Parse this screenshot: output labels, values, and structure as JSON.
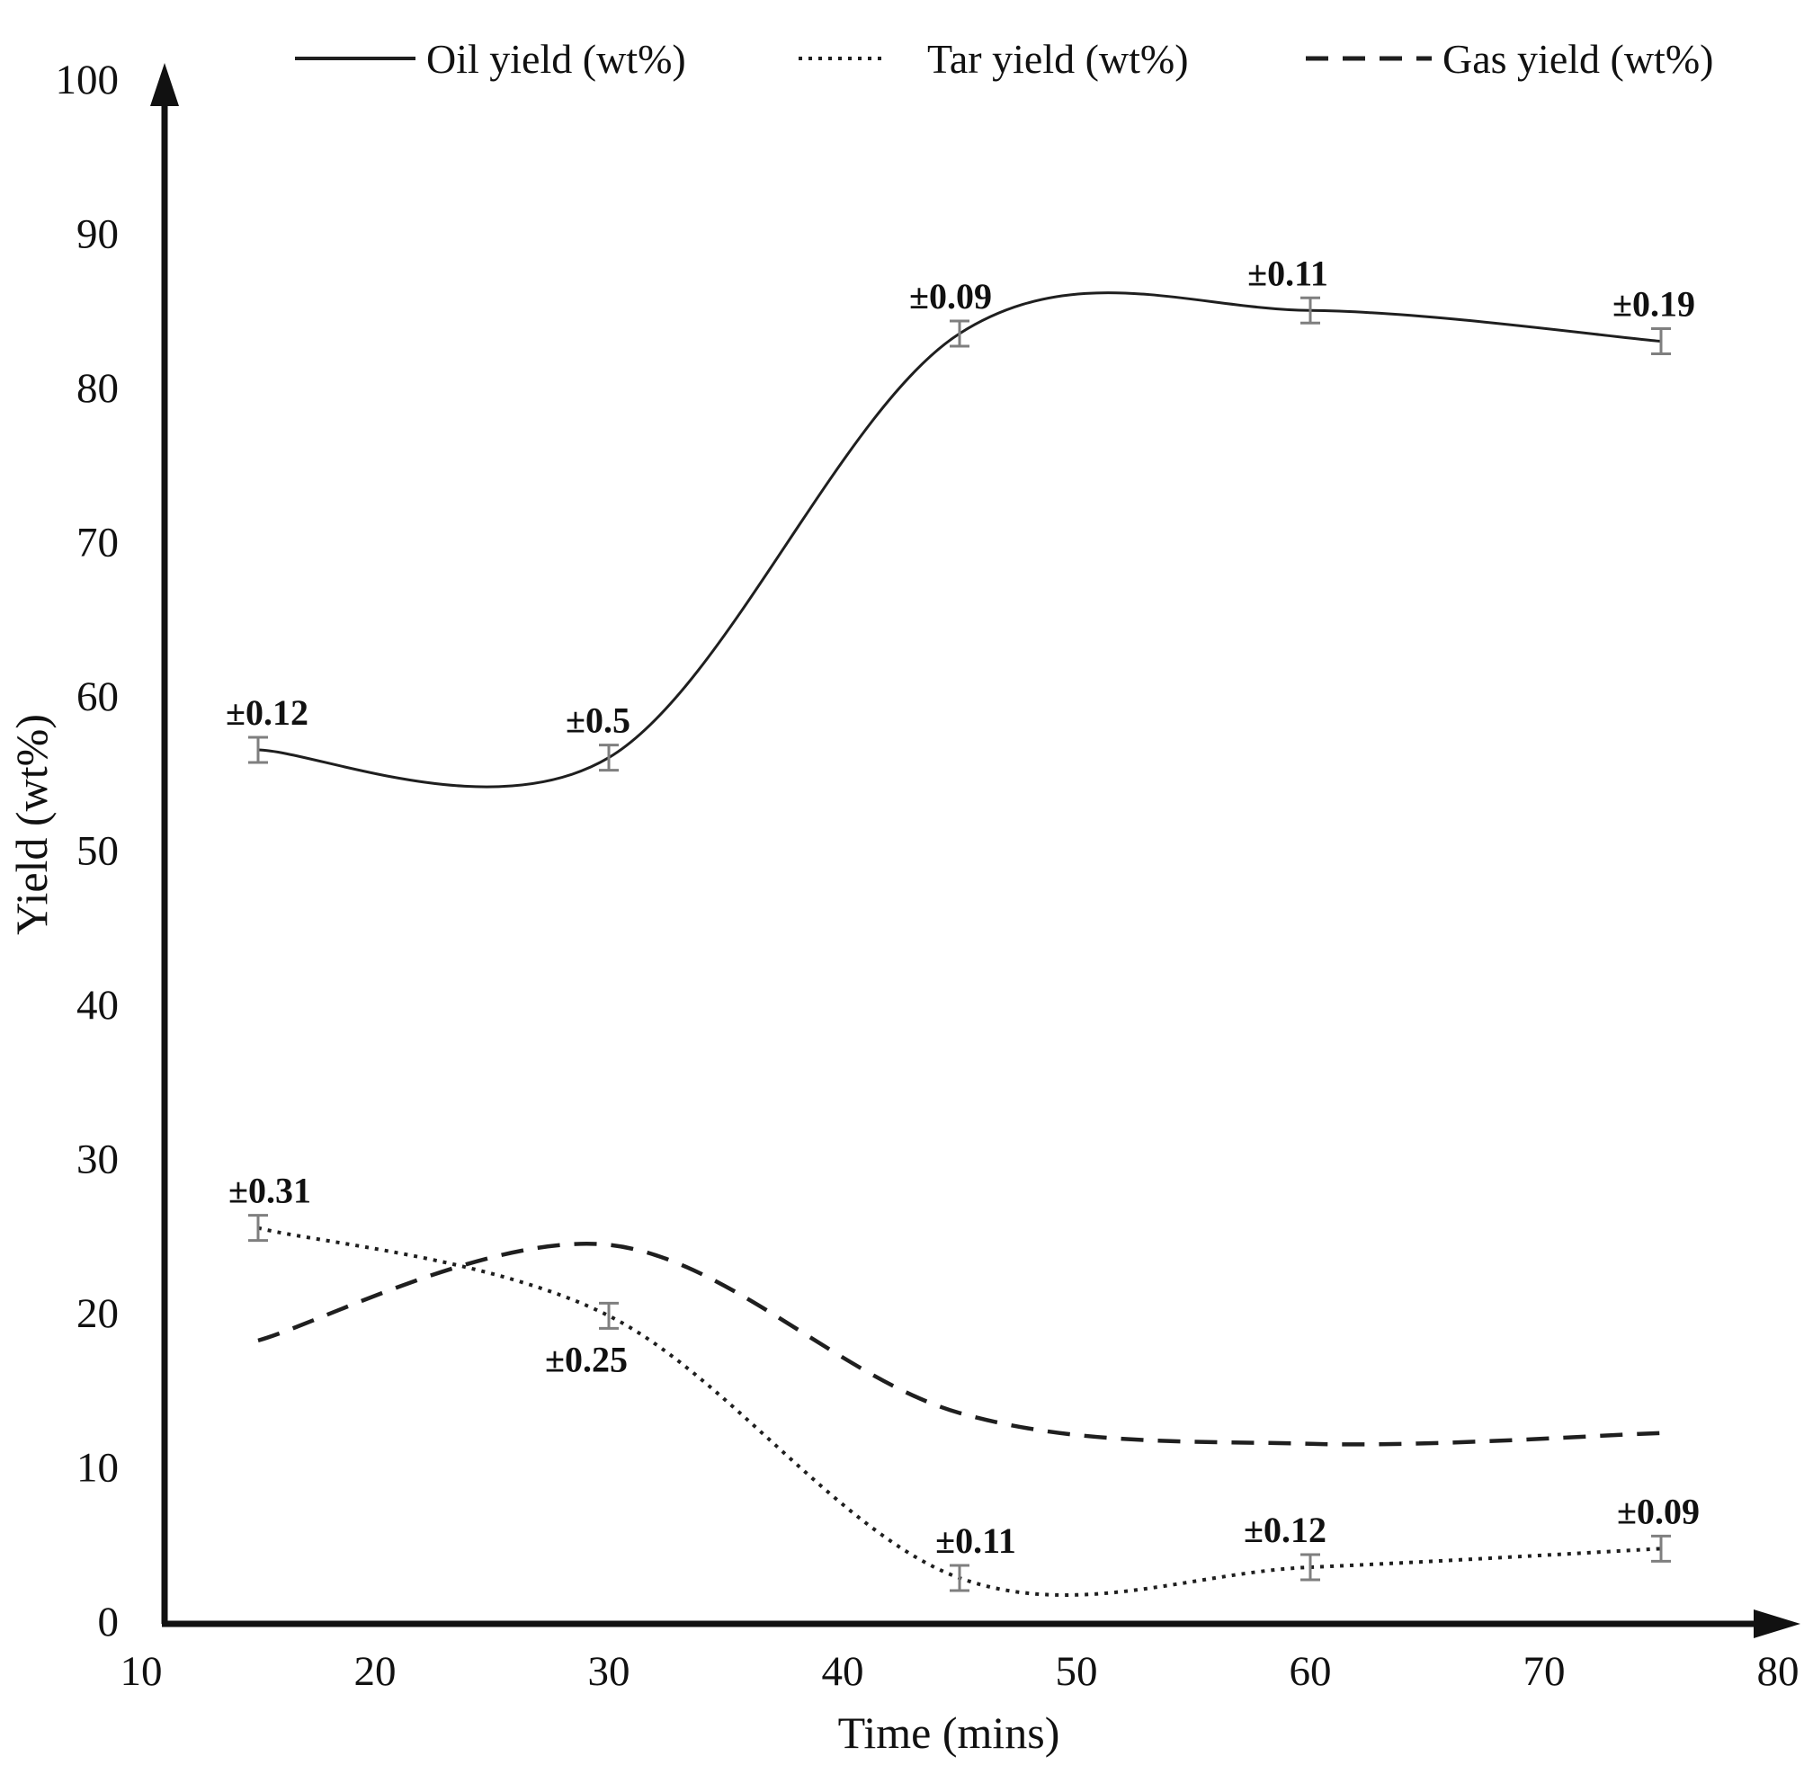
{
  "chart_data": {
    "type": "line",
    "x": [
      15,
      30,
      45,
      60,
      75
    ],
    "series": [
      {
        "name": "Oil yield (wt%)",
        "line_style": "solid",
        "values": [
          56.5,
          56.0,
          83.5,
          85.0,
          83.0
        ],
        "error_labels": [
          "±0.12",
          "±0.5",
          "±0.09",
          "±0.11",
          "±0.19"
        ],
        "error_label_sides": [
          "above",
          "above",
          "above",
          "above",
          "above"
        ]
      },
      {
        "name": "Tar yield (wt%)",
        "line_style": "dotted",
        "values": [
          25.5,
          19.8,
          2.8,
          3.5,
          4.7
        ],
        "error_labels": [
          "±0.31",
          "±0.25",
          "±0.11",
          "±0.12",
          "±0.09"
        ],
        "error_label_sides": [
          "above",
          "below",
          "above",
          "above",
          "above"
        ]
      },
      {
        "name": "Gas yield (wt%)",
        "line_style": "dashed",
        "values": [
          18.2,
          24.4,
          13.5,
          11.5,
          12.2
        ],
        "error_labels": [],
        "error_label_sides": []
      }
    ],
    "xlabel": "Time (mins)",
    "ylabel": "Yield (wt%)",
    "xlim": [
      10,
      80
    ],
    "ylim": [
      0,
      100
    ],
    "x_ticks": [
      10,
      20,
      30,
      40,
      50,
      60,
      70,
      80
    ],
    "y_ticks": [
      0,
      10,
      20,
      30,
      40,
      50,
      60,
      70,
      80,
      90,
      100
    ],
    "grid": false,
    "legend_position": "top",
    "colors": {
      "line": "#1f1f1f",
      "error_bar": "#7f7f7f",
      "text": "#111111"
    }
  }
}
